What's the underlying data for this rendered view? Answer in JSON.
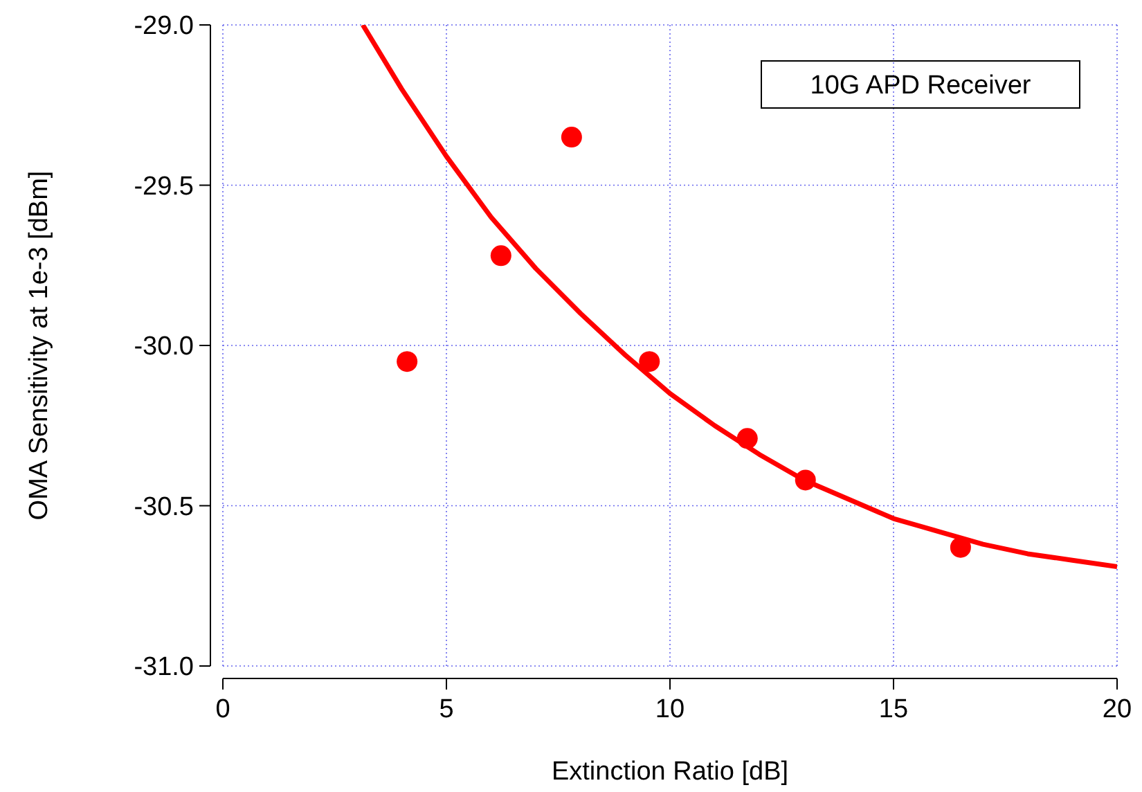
{
  "chart_data": {
    "type": "scatter",
    "xlabel": "Extinction Ratio [dB]",
    "ylabel": "OMA Sensitivity at 1e-3 [dBm]",
    "annotations": [
      "10G APD Receiver"
    ],
    "xlim": [
      0,
      20
    ],
    "ylim": [
      -31,
      -29
    ],
    "xticks": [
      0,
      5,
      10,
      15,
      20
    ],
    "yticks": [
      {
        "value": -31,
        "label": "-31.0"
      },
      {
        "value": -30.5,
        "label": "-30.5"
      },
      {
        "value": -30,
        "label": "-30.0"
      },
      {
        "value": -29.5,
        "label": "-29.5"
      },
      {
        "value": -29,
        "label": "-29.0"
      }
    ],
    "grid": true,
    "marker": "circle",
    "series": [
      {
        "color": "#ff0000",
        "x": [
          4.12,
          6.22,
          7.8,
          9.54,
          11.73,
          13.03,
          16.5
        ],
        "values": [
          -30.05,
          -29.72,
          -29.35,
          -30.05,
          -30.29,
          -30.42,
          -30.63
        ]
      },
      {
        "type": "line",
        "color": "#ff0000",
        "line_style": "solid",
        "marker": "none",
        "x": [
          3.13,
          4,
          5,
          6,
          7,
          8,
          9,
          10,
          11,
          12,
          13,
          14,
          15,
          16,
          17,
          18,
          19,
          20
        ],
        "values": [
          -29.0,
          -29.2,
          -29.41,
          -29.6,
          -29.76,
          -29.9,
          -30.03,
          -30.15,
          -30.25,
          -30.34,
          -30.42,
          -30.48,
          -30.54,
          -30.58,
          -30.62,
          -30.65,
          -30.67,
          -30.69
        ]
      }
    ]
  }
}
